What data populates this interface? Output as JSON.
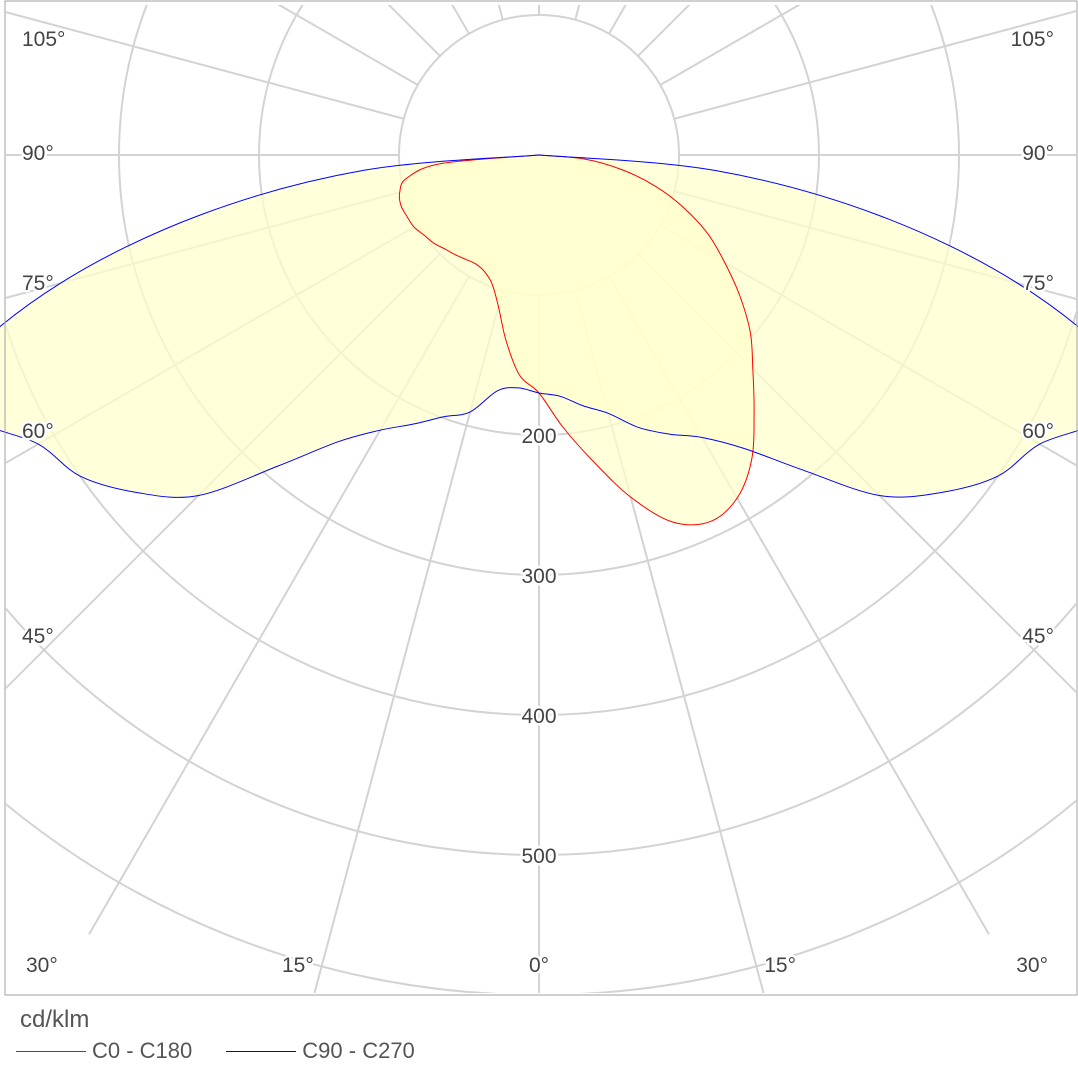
{
  "chart_data": {
    "type": "polar-luminous-intensity",
    "unit_label": "cd/klm",
    "radial_ticks": [
      100,
      200,
      300,
      400,
      500
    ],
    "radial_tick_labels": [
      "200",
      "300",
      "400",
      "500"
    ],
    "radial_max": 600,
    "angle_tick_labels": {
      "left": [
        "105°",
        "90°",
        "75°",
        "60°",
        "45°",
        "30°",
        "15°"
      ],
      "right": [
        "105°",
        "90°",
        "75°",
        "60°",
        "45°",
        "30°",
        "15°"
      ],
      "center": "0°"
    },
    "grid": true,
    "fill_color": "#ffffcc",
    "series": [
      {
        "name": "C0 - C180",
        "color": "#ff0000",
        "left_side": [
          [
            0,
            170
          ],
          [
            5,
            158
          ],
          [
            10,
            135
          ],
          [
            15,
            112
          ],
          [
            20,
            98
          ],
          [
            25,
            92
          ],
          [
            30,
            90
          ],
          [
            35,
            91
          ],
          [
            40,
            93
          ],
          [
            45,
            95
          ],
          [
            50,
            98
          ],
          [
            55,
            100
          ],
          [
            60,
            103
          ],
          [
            65,
            104
          ],
          [
            70,
            105
          ],
          [
            75,
            103
          ],
          [
            80,
            96
          ],
          [
            85,
            70
          ],
          [
            90,
            0
          ]
        ],
        "right_side": [
          [
            0,
            170
          ],
          [
            5,
            195
          ],
          [
            10,
            222
          ],
          [
            15,
            253
          ],
          [
            20,
            279
          ],
          [
            25,
            289
          ],
          [
            30,
            283
          ],
          [
            35,
            265
          ],
          [
            40,
            239
          ],
          [
            45,
            216
          ],
          [
            50,
            197
          ],
          [
            55,
            175
          ],
          [
            60,
            153
          ],
          [
            65,
            133
          ],
          [
            70,
            110
          ],
          [
            75,
            86
          ],
          [
            80,
            60
          ],
          [
            85,
            32
          ],
          [
            90,
            0
          ]
        ]
      },
      {
        "name": "C90 - C270",
        "color": "#0000ff",
        "left_side": [
          [
            0,
            170
          ],
          [
            5,
            167
          ],
          [
            10,
            171
          ],
          [
            15,
            190
          ],
          [
            20,
            199
          ],
          [
            25,
            212
          ],
          [
            30,
            227
          ],
          [
            35,
            250
          ],
          [
            40,
            290
          ],
          [
            45,
            344
          ],
          [
            50,
            375
          ],
          [
            55,
            400
          ],
          [
            60,
            413
          ],
          [
            65,
            444
          ],
          [
            70,
            438
          ],
          [
            75,
            354
          ],
          [
            80,
            245
          ],
          [
            85,
            126
          ],
          [
            90,
            0
          ]
        ],
        "right_side": [
          [
            0,
            170
          ],
          [
            5,
            173
          ],
          [
            10,
            182
          ],
          [
            15,
            191
          ],
          [
            20,
            207
          ],
          [
            25,
            220
          ],
          [
            30,
            233
          ],
          [
            35,
            256
          ],
          [
            40,
            294
          ],
          [
            45,
            344
          ],
          [
            50,
            375
          ],
          [
            55,
            400
          ],
          [
            60,
            413
          ],
          [
            65,
            444
          ],
          [
            70,
            438
          ],
          [
            75,
            354
          ],
          [
            80,
            245
          ],
          [
            85,
            126
          ],
          [
            90,
            0
          ]
        ]
      }
    ]
  }
}
